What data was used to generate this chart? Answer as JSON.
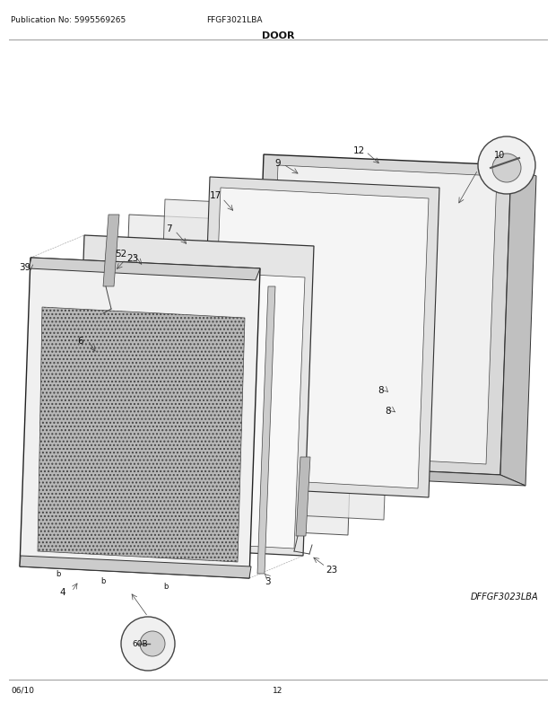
{
  "pub_no": "Publication No: 5995569265",
  "model": "FFGF3021LBA",
  "section": "DOOR",
  "diagram_ref": "DFFGF3023LBA",
  "date": "06/10",
  "page": "12",
  "bg_color": "#ffffff",
  "text_color": "#111111",
  "figsize": [
    6.2,
    8.03
  ],
  "dpi": 100
}
